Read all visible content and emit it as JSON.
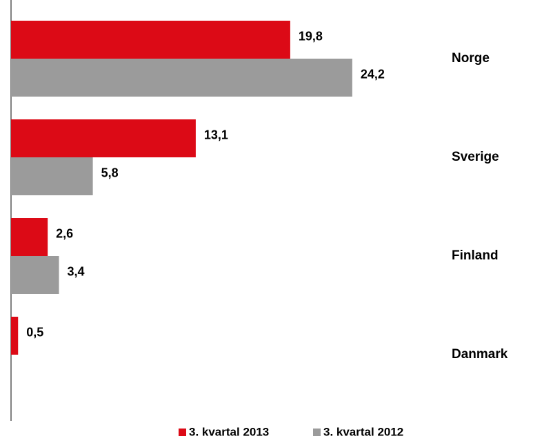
{
  "chart_data": {
    "type": "bar",
    "orientation": "horizontal",
    "categories": [
      "Norge",
      "Sverige",
      "Finland",
      "Danmark"
    ],
    "series": [
      {
        "name": "3. kvartal 2013",
        "color": "#dc0a16",
        "values": [
          19.8,
          13.1,
          2.6,
          0.5
        ],
        "value_labels": [
          "19,8",
          "13,1",
          "2,6",
          "0,5"
        ]
      },
      {
        "name": "3. kvartal 2012",
        "color": "#9b9b9b",
        "values": [
          24.2,
          5.8,
          3.4,
          null
        ],
        "value_labels": [
          "24,2",
          "5,8",
          "3,4",
          null
        ]
      }
    ],
    "xlim": [
      0,
      30
    ]
  }
}
